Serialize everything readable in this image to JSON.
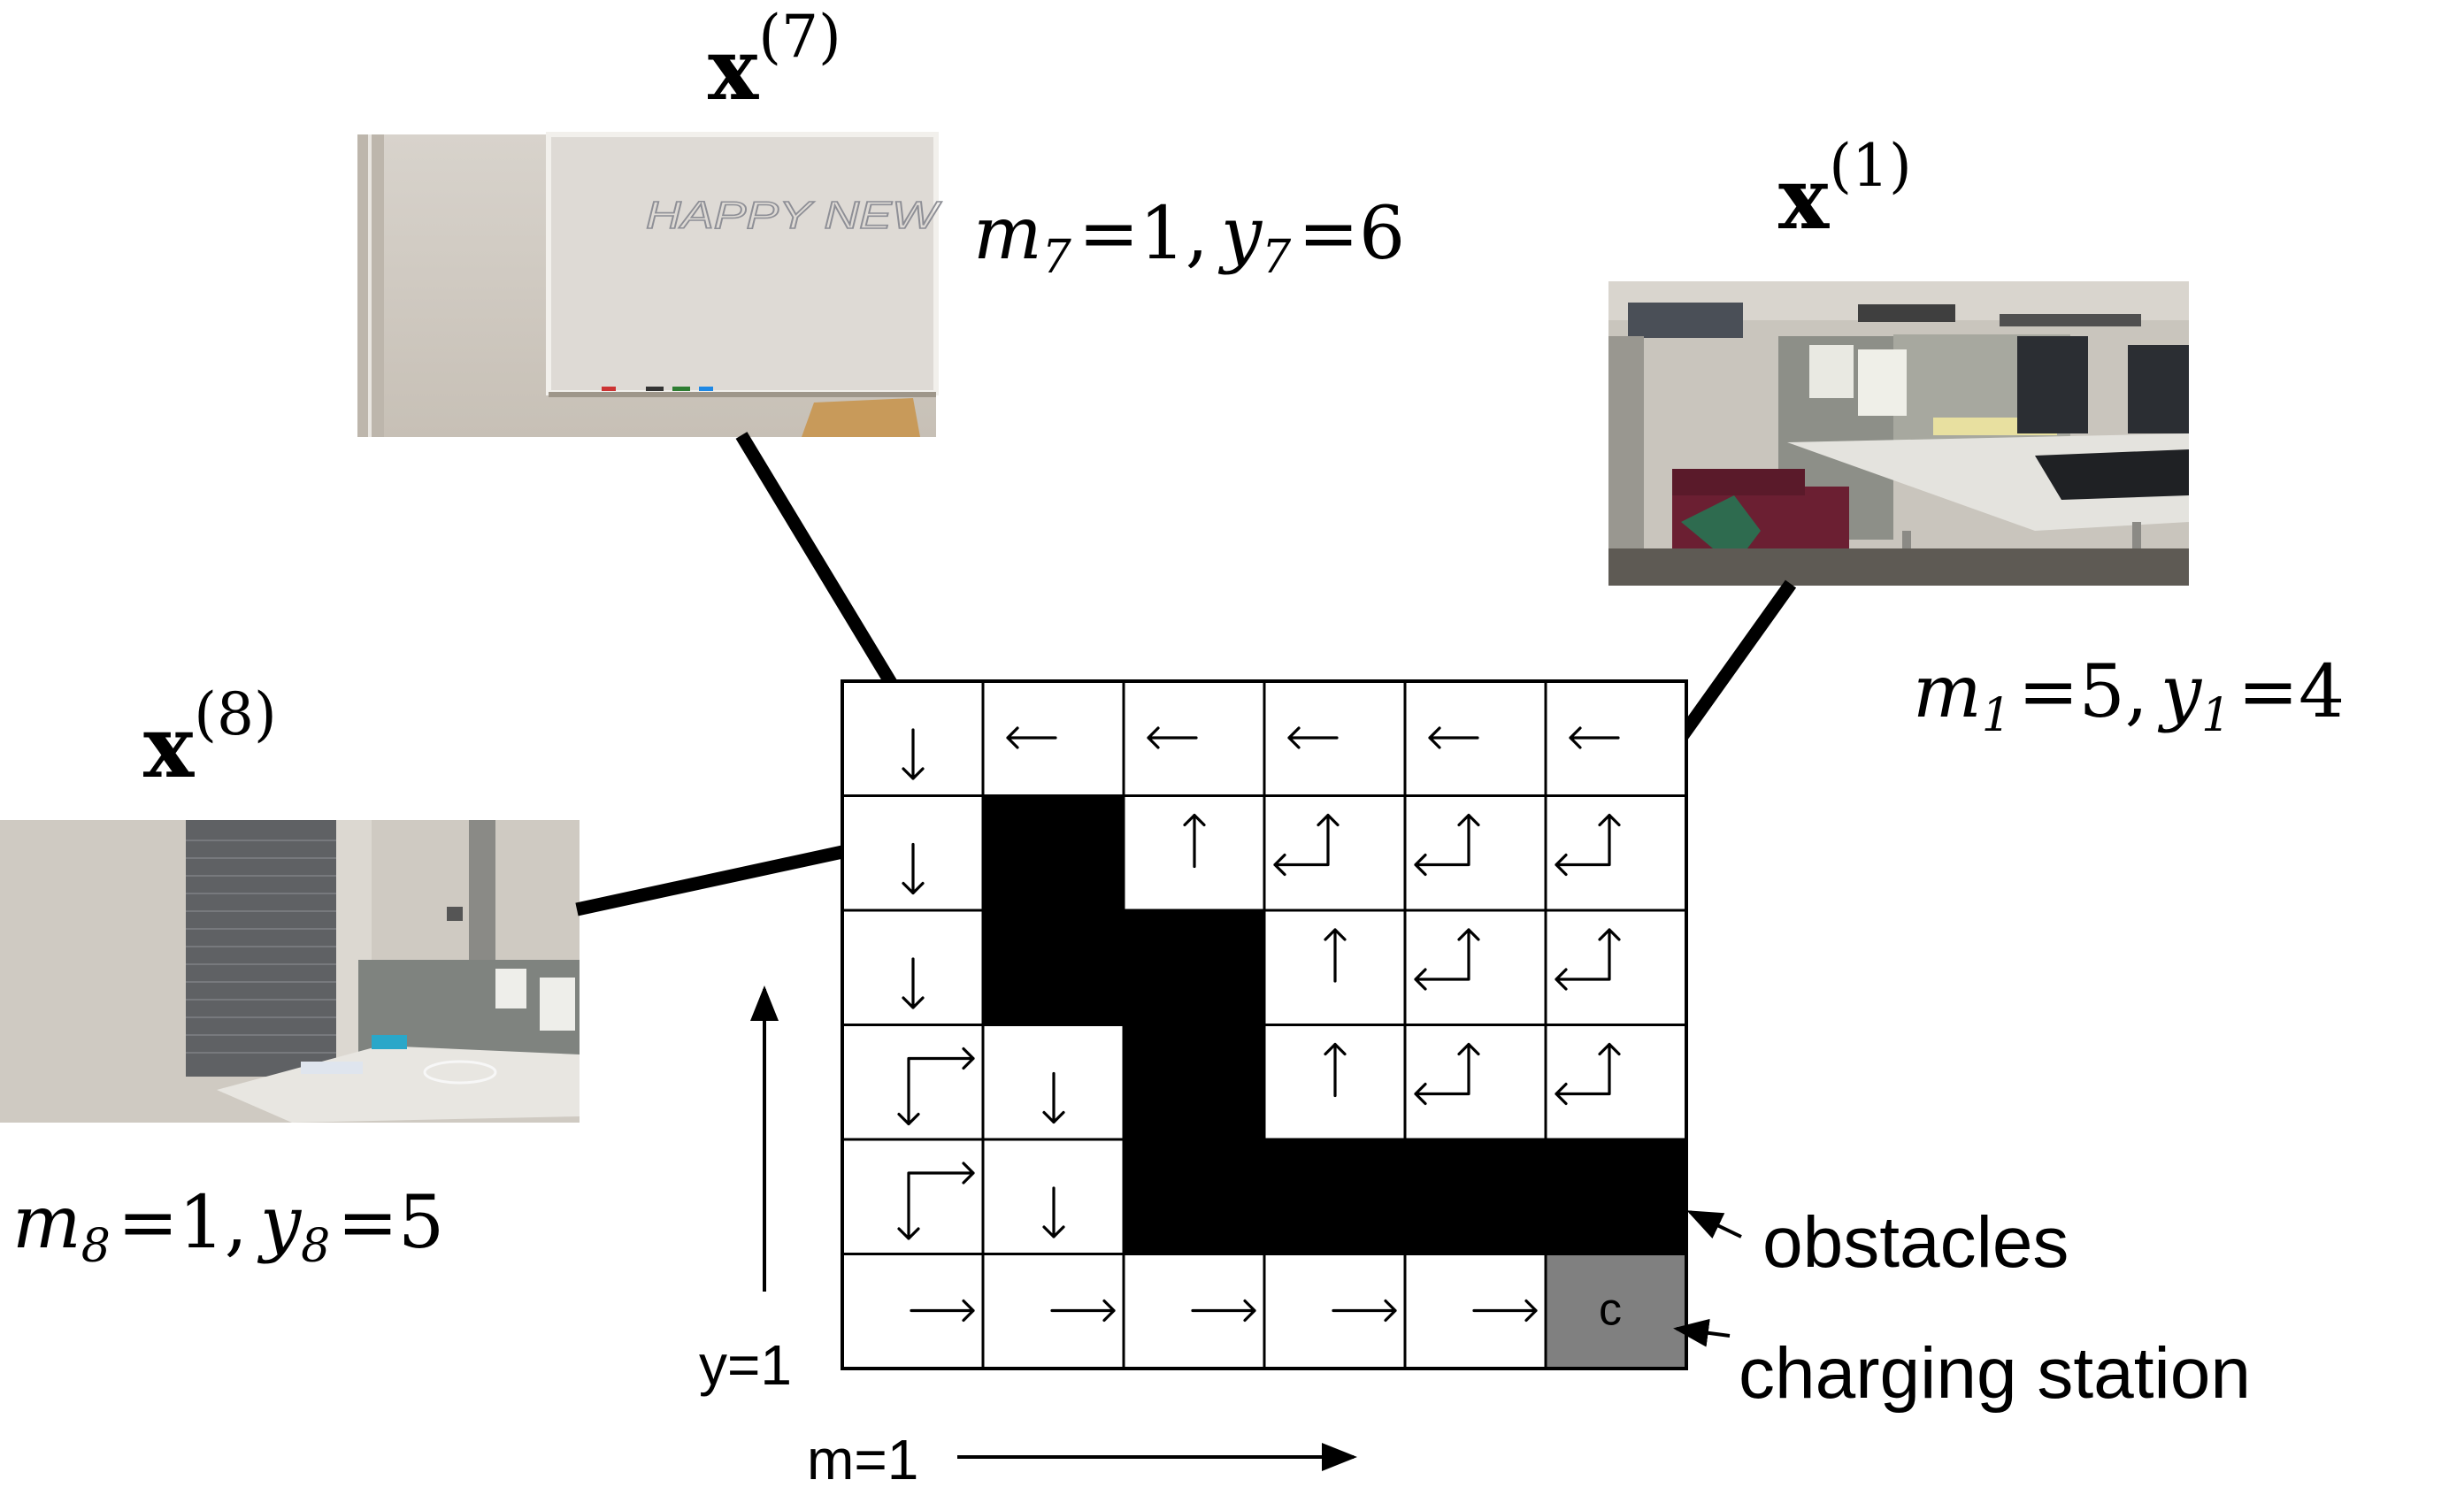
{
  "grid": {
    "rows": [
      [
        "down",
        "left",
        "left",
        "left",
        "left",
        "left"
      ],
      [
        "down",
        "obstacle",
        "up",
        "up-left",
        "up-left",
        "up-left"
      ],
      [
        "down",
        "obstacle",
        "obstacle",
        "up",
        "up-left",
        "up-left"
      ],
      [
        "down-right",
        "down",
        "obstacle",
        "up",
        "up-left",
        "up-left"
      ],
      [
        "down-right",
        "down",
        "obstacle",
        "obstacle",
        "obstacle",
        "obstacle"
      ],
      [
        "right",
        "right",
        "right",
        "right",
        "right",
        "charging"
      ]
    ],
    "charging_label": "c",
    "colors": {
      "obstacle": "#000000",
      "charging": "#808080",
      "free": "#ffffff"
    }
  },
  "axes": {
    "y_label": "y=1",
    "m_label": "m=1"
  },
  "annotations": {
    "obstacles": "obstacles",
    "charging_station": "charging station"
  },
  "views": [
    {
      "id": "x7",
      "x_base": "x",
      "x_sup": "(7)",
      "m_label": "m",
      "m_sub": "7",
      "m_val": "=1,",
      "y_label": "y",
      "y_sub": "7",
      "y_val": "=6",
      "photo_text": "HAPPY NEW"
    },
    {
      "id": "x1",
      "x_base": "x",
      "x_sup": "(1)",
      "m_label": "m",
      "m_sub": "1",
      "m_val": "=5,",
      "y_label": "y",
      "y_sub": "1",
      "y_val": "=4"
    },
    {
      "id": "x8",
      "x_base": "x",
      "x_sup": "(8)",
      "m_label": "m",
      "m_sub": "8",
      "m_val": "=1,",
      "y_label": "y",
      "y_sub": "8",
      "y_val": "=5"
    }
  ]
}
